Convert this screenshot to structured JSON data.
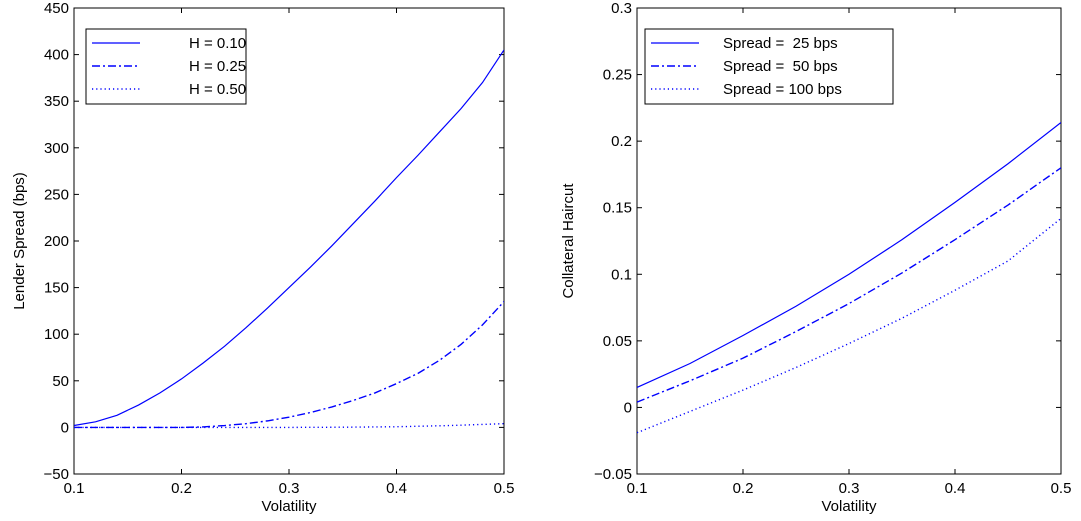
{
  "chart_data": [
    {
      "type": "line",
      "title": "",
      "xlabel": "Volatility",
      "ylabel": "Lender Spread (bps)",
      "xlim": [
        0.1,
        0.5
      ],
      "ylim": [
        -50,
        450
      ],
      "xticks": [
        0.1,
        0.2,
        0.3,
        0.4,
        0.5
      ],
      "xtick_labels": [
        "0.1",
        "0.2",
        "0.3",
        "0.4",
        "0.5"
      ],
      "yticks": [
        -50,
        0,
        50,
        100,
        150,
        200,
        250,
        300,
        350,
        400,
        450
      ],
      "ytick_labels": [
        "−50",
        "0",
        "50",
        "100",
        "150",
        "200",
        "250",
        "300",
        "350",
        "400",
        "450"
      ],
      "grid": false,
      "legend_position": "top-left",
      "series": [
        {
          "name": "H = 0.10",
          "style": "solid",
          "color": "#0000ff",
          "x": [
            0.1,
            0.12,
            0.14,
            0.16,
            0.18,
            0.2,
            0.22,
            0.24,
            0.26,
            0.28,
            0.3,
            0.32,
            0.34,
            0.36,
            0.38,
            0.4,
            0.42,
            0.44,
            0.46,
            0.48,
            0.5
          ],
          "y": [
            2,
            6,
            13,
            24,
            37,
            52,
            69,
            87,
            107,
            128,
            150,
            172,
            195,
            219,
            243,
            268,
            292,
            317,
            342,
            370,
            405
          ]
        },
        {
          "name": "H = 0.25",
          "style": "dashdot",
          "color": "#0000ff",
          "x": [
            0.1,
            0.12,
            0.14,
            0.16,
            0.18,
            0.2,
            0.22,
            0.24,
            0.26,
            0.28,
            0.3,
            0.32,
            0.34,
            0.36,
            0.38,
            0.4,
            0.42,
            0.44,
            0.46,
            0.48,
            0.5
          ],
          "y": [
            0,
            0,
            0,
            0,
            0,
            0,
            0.5,
            2,
            4,
            7,
            11,
            16,
            22,
            29,
            37,
            47,
            58,
            72,
            89,
            110,
            135
          ]
        },
        {
          "name": "H = 0.50",
          "style": "dotted",
          "color": "#0000ff",
          "x": [
            0.1,
            0.15,
            0.2,
            0.25,
            0.3,
            0.35,
            0.4,
            0.45,
            0.5
          ],
          "y": [
            0,
            0,
            0,
            0,
            0,
            0.2,
            0.7,
            2,
            4
          ]
        }
      ]
    },
    {
      "type": "line",
      "title": "",
      "xlabel": "Volatility",
      "ylabel": "Collateral Haircut",
      "xlim": [
        0.1,
        0.5
      ],
      "ylim": [
        -0.05,
        0.3
      ],
      "xticks": [
        0.1,
        0.2,
        0.3,
        0.4,
        0.5
      ],
      "xtick_labels": [
        "0.1",
        "0.2",
        "0.3",
        "0.4",
        "0.5"
      ],
      "yticks": [
        -0.05,
        0,
        0.05,
        0.1,
        0.15,
        0.2,
        0.25,
        0.3
      ],
      "ytick_labels": [
        "−0.05",
        "0",
        "0.05",
        "0.1",
        "0.15",
        "0.2",
        "0.25",
        "0.3"
      ],
      "grid": false,
      "legend_position": "top-left",
      "series": [
        {
          "name": "Spread =  25 bps",
          "style": "solid",
          "color": "#0000ff",
          "x": [
            0.1,
            0.15,
            0.2,
            0.25,
            0.3,
            0.35,
            0.4,
            0.45,
            0.5
          ],
          "y": [
            0.015,
            0.033,
            0.054,
            0.076,
            0.1,
            0.126,
            0.154,
            0.183,
            0.214
          ]
        },
        {
          "name": "Spread =  50 bps",
          "style": "dashdot",
          "color": "#0000ff",
          "x": [
            0.1,
            0.15,
            0.2,
            0.25,
            0.3,
            0.35,
            0.4,
            0.45,
            0.5
          ],
          "y": [
            0.004,
            0.02,
            0.037,
            0.057,
            0.078,
            0.101,
            0.126,
            0.152,
            0.18
          ]
        },
        {
          "name": "Spread = 100 bps",
          "style": "dotted",
          "color": "#0000ff",
          "x": [
            0.1,
            0.15,
            0.2,
            0.25,
            0.3,
            0.35,
            0.4,
            0.45,
            0.5
          ],
          "y": [
            -0.019,
            -0.003,
            0.013,
            0.03,
            0.048,
            0.067,
            0.088,
            0.11,
            0.142
          ]
        }
      ]
    }
  ]
}
